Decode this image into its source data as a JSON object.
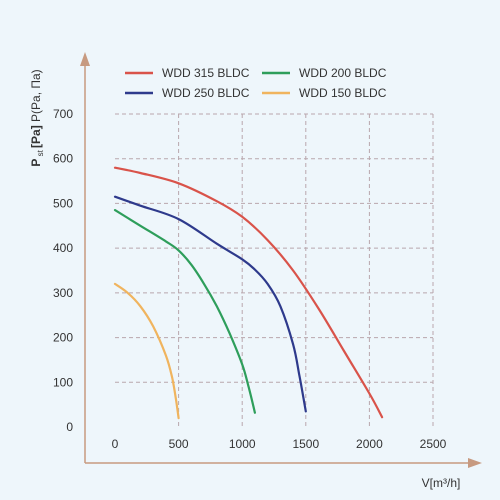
{
  "chart_data": {
    "type": "line",
    "xlabel": "V[m³/h]",
    "ylabel": {
      "symbol": "P",
      "subscript": "st",
      "unit": "[Pa]",
      "alt": "P(Pa, Па)"
    },
    "xlim": [
      0,
      2500
    ],
    "ylim": [
      0,
      700
    ],
    "xticks": [
      0,
      500,
      1000,
      1500,
      2000,
      2500
    ],
    "yticks": [
      0,
      100,
      200,
      300,
      400,
      500,
      600,
      700
    ],
    "grid": true,
    "legend_position": "top",
    "series": [
      {
        "name": "WDD 315 BLDC",
        "color": "#d9534a",
        "x": [
          0,
          200,
          500,
          800,
          1000,
          1200,
          1400,
          1600,
          1800,
          2000,
          2100
        ],
        "y": [
          580,
          568,
          545,
          505,
          470,
          418,
          350,
          265,
          170,
          75,
          22
        ]
      },
      {
        "name": "WDD 200 BLDC",
        "color": "#2e9e5b",
        "x": [
          0,
          200,
          400,
          500,
          600,
          700,
          800,
          900,
          1000,
          1050,
          1100
        ],
        "y": [
          485,
          450,
          415,
          395,
          363,
          320,
          270,
          210,
          140,
          90,
          32
        ]
      },
      {
        "name": "WDD 250 BLDC",
        "color": "#2e3a8c",
        "x": [
          0,
          200,
          500,
          800,
          1000,
          1100,
          1200,
          1300,
          1400,
          1450,
          1500
        ],
        "y": [
          515,
          495,
          465,
          410,
          375,
          352,
          320,
          270,
          185,
          115,
          35
        ]
      },
      {
        "name": "WDD 150 BLDC",
        "color": "#f0b45e",
        "x": [
          0,
          100,
          200,
          300,
          400,
          450,
          480,
          500
        ],
        "y": [
          320,
          300,
          270,
          225,
          160,
          110,
          60,
          20
        ]
      }
    ]
  }
}
